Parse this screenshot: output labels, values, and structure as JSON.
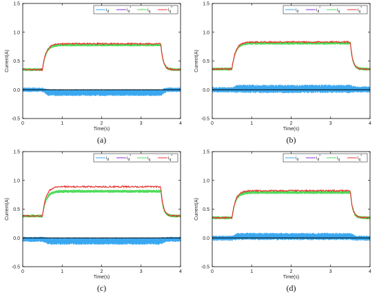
{
  "colors": {
    "i_d": "#3aa8f0",
    "i_d_ref": "#8b2be2",
    "i_q": "#4fdc5a",
    "i_q_ref": "#e8332e",
    "axis": "#000000",
    "zero_line": "#000000"
  },
  "chart_data": [
    {
      "type": "line",
      "caption": "(a)",
      "xlabel": "Time(s)",
      "ylabel": "Current(A)",
      "xlim": [
        0,
        4
      ],
      "ylim": [
        -0.5,
        1.5
      ],
      "xticks": [
        0,
        1,
        2,
        3,
        4
      ],
      "yticks": [
        -0.5,
        0.0,
        0.5,
        1.0,
        1.5
      ],
      "ytick_labels": [
        "-0.5",
        "0.0",
        "0.5",
        "1.0",
        "1.5"
      ],
      "legend": [
        "i_d",
        "i_d*",
        "i_q",
        "i_q*"
      ],
      "legend_position": "top-right",
      "step": {
        "t_up": 0.5,
        "t_down": 3.5,
        "low": 0.35,
        "iq_high": 0.78,
        "iq_ref_high": 0.8
      },
      "id_band": {
        "before": [
          -0.04,
          0.04
        ],
        "during": [
          -0.11,
          0.01
        ],
        "after": [
          -0.04,
          0.04
        ]
      }
    },
    {
      "type": "line",
      "caption": "(b)",
      "xlabel": "Time(s)",
      "ylabel": "Current(A)",
      "xlim": [
        0,
        4
      ],
      "ylim": [
        -0.5,
        1.5
      ],
      "xticks": [
        0,
        1,
        2,
        3,
        4
      ],
      "yticks": [
        -0.5,
        0.0,
        0.5,
        1.0,
        1.5
      ],
      "ytick_labels": [
        "-0.5",
        "0.0",
        "0.5",
        "1.0",
        "1.5"
      ],
      "legend": [
        "i_d",
        "i_d*",
        "i_q",
        "i_q*"
      ],
      "legend_position": "top-right",
      "step": {
        "t_up": 0.5,
        "t_down": 3.5,
        "low": 0.36,
        "iq_high": 0.81,
        "iq_ref_high": 0.83
      },
      "id_band": {
        "before": [
          -0.05,
          0.05
        ],
        "during": [
          -0.06,
          0.09
        ],
        "after": [
          -0.05,
          0.06
        ]
      }
    },
    {
      "type": "line",
      "caption": "(c)",
      "xlabel": "Time(s)",
      "ylabel": "Current(A)",
      "xlim": [
        0,
        4
      ],
      "ylim": [
        -0.5,
        1.5
      ],
      "xticks": [
        0,
        1,
        2,
        3,
        4
      ],
      "yticks": [
        -0.5,
        0.0,
        0.5,
        1.0,
        1.5
      ],
      "ytick_labels": [
        "-0.5",
        "0.0",
        "0.5",
        "1.0",
        "1.5"
      ],
      "legend": [
        "i_d",
        "i_d*",
        "i_q",
        "i_q*"
      ],
      "legend_position": "top-right",
      "step": {
        "t_up": 0.5,
        "t_down": 3.5,
        "low": 0.38,
        "iq_high": 0.81,
        "iq_ref_high": 0.89
      },
      "id_band": {
        "before": [
          -0.07,
          0.02
        ],
        "during": [
          -0.12,
          0.01
        ],
        "after": [
          -0.07,
          0.02
        ]
      }
    },
    {
      "type": "line",
      "caption": "(d)",
      "xlabel": "Time(s)",
      "ylabel": "Current(A)",
      "xlim": [
        0,
        4
      ],
      "ylim": [
        -0.5,
        1.5
      ],
      "xticks": [
        0,
        1,
        2,
        3,
        4
      ],
      "yticks": [
        -0.5,
        0.0,
        0.5,
        1.0,
        1.5
      ],
      "ytick_labels": [
        "-0.5",
        "0.0",
        "0.5",
        "1.0",
        "1.5"
      ],
      "legend": [
        "i_d",
        "i_d*",
        "i_q",
        "i_q*"
      ],
      "legend_position": "top-right",
      "step": {
        "t_up": 0.5,
        "t_down": 3.5,
        "low": 0.35,
        "iq_high": 0.79,
        "iq_ref_high": 0.82
      },
      "id_band": {
        "before": [
          -0.05,
          0.04
        ],
        "during": [
          -0.04,
          0.09
        ],
        "after": [
          -0.05,
          0.04
        ]
      }
    }
  ]
}
